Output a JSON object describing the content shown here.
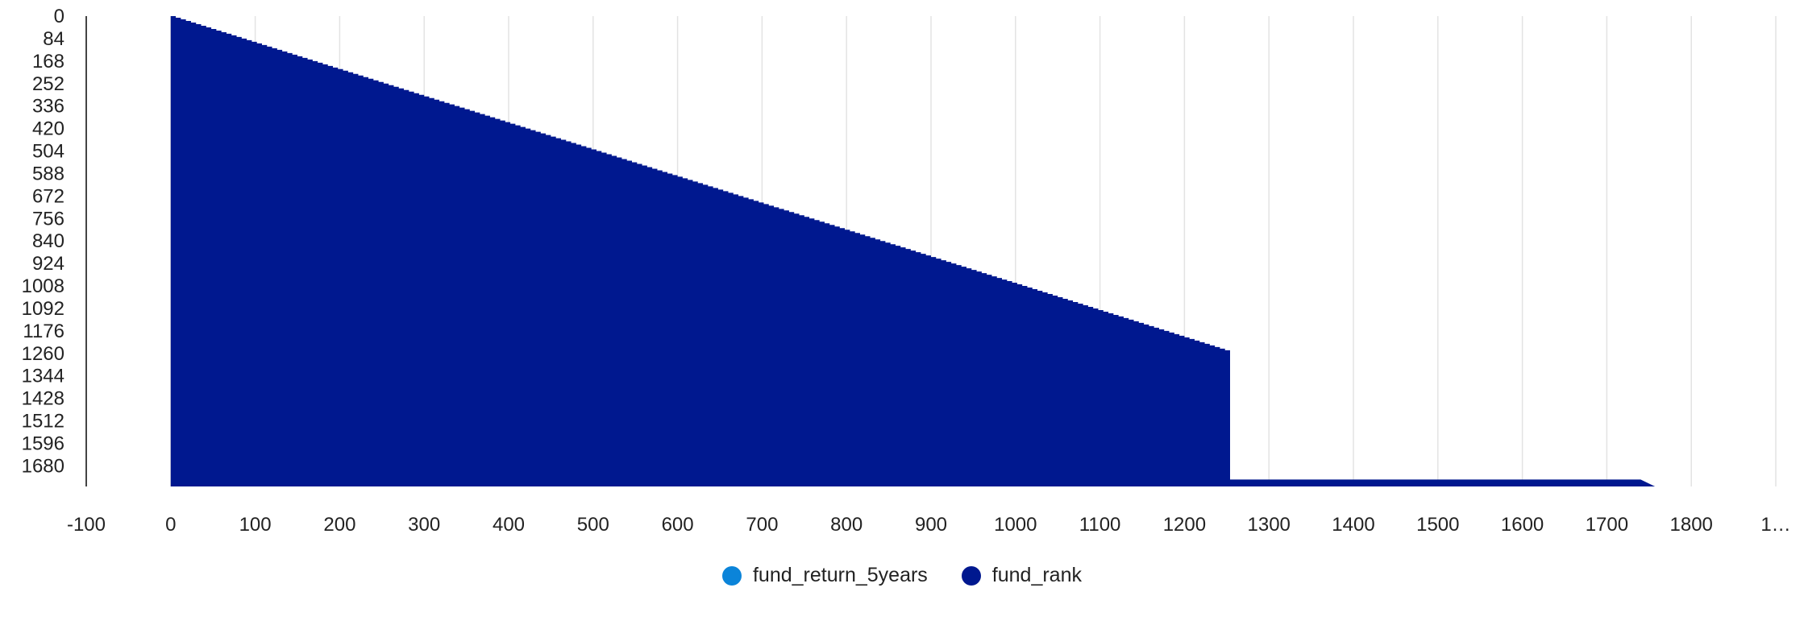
{
  "chart_data": {
    "type": "area",
    "title": "",
    "xlabel": "",
    "ylabel": "",
    "x_ticks": [
      "-100",
      "0",
      "100",
      "200",
      "300",
      "400",
      "500",
      "600",
      "700",
      "800",
      "900",
      "1000",
      "1100",
      "1200",
      "1300",
      "1400",
      "1500",
      "1600",
      "1700",
      "1800",
      "1…"
    ],
    "y_ticks": [
      "0",
      "84",
      "168",
      "252",
      "336",
      "420",
      "504",
      "588",
      "672",
      "756",
      "840",
      "924",
      "1008",
      "1092",
      "1176",
      "1260",
      "1344",
      "1428",
      "1512",
      "1596",
      "1680"
    ],
    "xlim": [
      -100,
      1900
    ],
    "ylim": [
      0,
      1757
    ],
    "y_inverted": true,
    "grid": "vertical",
    "legend_position": "bottom-center",
    "series": [
      {
        "name": "fund_return_5years",
        "color": "#0b84d9",
        "x": [],
        "y": []
      },
      {
        "name": "fund_rank",
        "color": "#00188f",
        "x": [
          0,
          1254,
          1254,
          1255,
          1740,
          1757
        ],
        "y": [
          0,
          1254,
          1731,
          1731,
          1731,
          1757
        ]
      }
    ]
  }
}
